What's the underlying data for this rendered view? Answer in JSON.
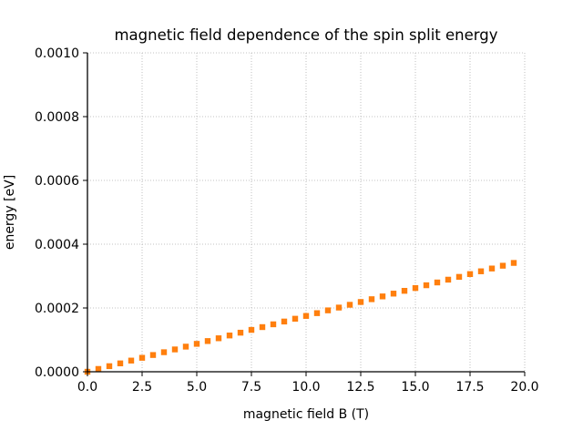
{
  "chart_data": {
    "type": "scatter",
    "title": "magnetic field dependence of the spin split energy",
    "xlabel": "magnetic field B (T)",
    "ylabel": "energy [eV]",
    "xlim": [
      0,
      20
    ],
    "ylim": [
      0,
      0.001
    ],
    "xticks": [
      "0.0",
      "2.5",
      "5.0",
      "7.5",
      "10.0",
      "12.5",
      "15.0",
      "17.5",
      "20.0"
    ],
    "yticks": [
      "0.0000",
      "0.0002",
      "0.0004",
      "0.0006",
      "0.0008",
      "0.0010"
    ],
    "grid": true,
    "marker_color": "#ff7f0e",
    "marker": "square",
    "x": [
      0,
      0.5,
      1,
      1.5,
      2,
      2.5,
      3,
      3.5,
      4,
      4.5,
      5,
      5.5,
      6,
      6.5,
      7,
      7.5,
      8,
      8.5,
      9,
      9.5,
      10,
      10.5,
      11,
      11.5,
      12,
      12.5,
      13,
      13.5,
      14,
      14.5,
      15,
      15.5,
      16,
      16.5,
      17,
      17.5,
      18,
      18.5,
      19,
      19.5
    ],
    "y": [
      0,
      8.75e-06,
      1.75e-05,
      2.625e-05,
      3.5e-05,
      4.375e-05,
      5.25e-05,
      6.125e-05,
      7e-05,
      7.875e-05,
      8.75e-05,
      9.625e-05,
      0.000105,
      0.00011375,
      0.0001225,
      0.00013125,
      0.00014,
      0.00014875,
      0.0001575,
      0.00016625,
      0.000175,
      0.00018375,
      0.0001925,
      0.00020125,
      0.00021,
      0.00021875,
      0.0002275,
      0.00023625,
      0.000245,
      0.00025375,
      0.0002625,
      0.00027125,
      0.00028,
      0.00028875,
      0.0002975,
      0.00030625,
      0.000315,
      0.00032375,
      0.0003325,
      0.00034125
    ]
  }
}
